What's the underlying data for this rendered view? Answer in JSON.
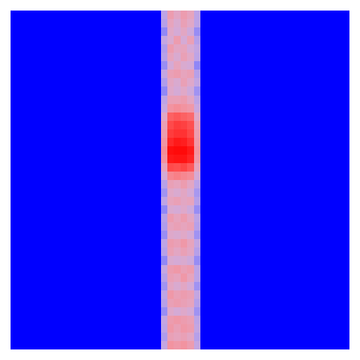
{
  "chart_data": {
    "type": "heatmap",
    "tick_labels": false,
    "xlim": [
      0,
      1
    ],
    "ylim": [
      0,
      1
    ],
    "x": [
      0,
      0.443,
      0.4625,
      0.482,
      0.5015,
      0.521,
      0.5405,
      0.56,
      1
    ],
    "y": [
      1,
      0.975,
      0.95,
      0.925,
      0.9,
      0.875,
      0.85,
      0.825,
      0.8,
      0.775,
      0.75,
      0.725,
      0.7,
      0.675,
      0.65,
      0.625,
      0.6,
      0.575,
      0.55,
      0.525,
      0.5,
      0.475,
      0.45,
      0.425,
      0.4,
      0.375,
      0.35,
      0.325,
      0.3,
      0.275,
      0.25,
      0.225,
      0.2,
      0.175,
      0.15,
      0.125,
      0.1,
      0.075,
      0.05,
      0.025,
      0
    ],
    "z": [
      [
        0,
        0.42,
        0.62,
        0.56,
        0.62,
        0.58,
        0.42,
        0
      ],
      [
        0,
        0.4,
        0.58,
        0.52,
        0.6,
        0.55,
        0.42,
        0
      ],
      [
        0,
        0.3,
        0.55,
        0.5,
        0.56,
        0.48,
        0.32,
        0
      ],
      [
        0,
        0.44,
        0.52,
        0.62,
        0.5,
        0.6,
        0.4,
        0
      ],
      [
        0,
        0.38,
        0.62,
        0.56,
        0.58,
        0.5,
        0.44,
        0
      ],
      [
        0,
        0.4,
        0.58,
        0.52,
        0.6,
        0.55,
        0.42,
        0
      ],
      [
        0,
        0.32,
        0.5,
        0.58,
        0.52,
        0.5,
        0.3,
        0
      ],
      [
        0,
        0.44,
        0.6,
        0.62,
        0.58,
        0.6,
        0.4,
        0
      ],
      [
        0,
        0.38,
        0.56,
        0.52,
        0.6,
        0.54,
        0.44,
        0
      ],
      [
        0,
        0.3,
        0.54,
        0.5,
        0.55,
        0.48,
        0.34,
        0
      ],
      [
        0,
        0.42,
        0.6,
        0.6,
        0.62,
        0.56,
        0.42,
        0
      ],
      [
        0,
        0.45,
        0.66,
        0.68,
        0.66,
        0.64,
        0.46,
        0
      ],
      [
        0,
        0.55,
        0.8,
        0.82,
        0.8,
        0.78,
        0.55,
        0
      ],
      [
        0,
        0.6,
        0.85,
        0.88,
        0.87,
        0.84,
        0.6,
        0
      ],
      [
        0,
        0.62,
        0.88,
        0.9,
        0.9,
        0.86,
        0.62,
        0
      ],
      [
        0,
        0.65,
        0.92,
        0.95,
        0.94,
        0.9,
        0.64,
        0
      ],
      [
        0,
        0.68,
        0.97,
        0.98,
        0.98,
        0.95,
        0.66,
        0
      ],
      [
        0,
        0.66,
        0.95,
        0.96,
        0.96,
        0.93,
        0.64,
        0
      ],
      [
        0,
        0.58,
        0.85,
        0.84,
        0.86,
        0.82,
        0.58,
        0
      ],
      [
        0,
        0.5,
        0.7,
        0.72,
        0.7,
        0.68,
        0.5,
        0
      ],
      [
        0,
        0.4,
        0.6,
        0.58,
        0.62,
        0.56,
        0.42,
        0
      ],
      [
        0,
        0.34,
        0.55,
        0.52,
        0.56,
        0.5,
        0.36,
        0
      ],
      [
        0,
        0.42,
        0.58,
        0.6,
        0.56,
        0.58,
        0.4,
        0
      ],
      [
        0,
        0.3,
        0.52,
        0.5,
        0.54,
        0.48,
        0.32,
        0
      ],
      [
        0,
        0.4,
        0.62,
        0.58,
        0.62,
        0.56,
        0.42,
        0
      ],
      [
        0,
        0.38,
        0.58,
        0.6,
        0.58,
        0.6,
        0.4,
        0
      ],
      [
        0,
        0.32,
        0.54,
        0.52,
        0.55,
        0.5,
        0.34,
        0
      ],
      [
        0,
        0.42,
        0.62,
        0.6,
        0.64,
        0.58,
        0.44,
        0
      ],
      [
        0,
        0.4,
        0.6,
        0.56,
        0.6,
        0.56,
        0.4,
        0
      ],
      [
        0,
        0.3,
        0.52,
        0.5,
        0.52,
        0.48,
        0.32,
        0
      ],
      [
        0,
        0.44,
        0.62,
        0.64,
        0.6,
        0.62,
        0.42,
        0
      ],
      [
        0,
        0.4,
        0.6,
        0.58,
        0.64,
        0.58,
        0.42,
        0
      ],
      [
        0,
        0.34,
        0.56,
        0.52,
        0.56,
        0.5,
        0.34,
        0
      ],
      [
        0,
        0.42,
        0.64,
        0.6,
        0.62,
        0.6,
        0.44,
        0
      ],
      [
        0,
        0.4,
        0.6,
        0.62,
        0.6,
        0.58,
        0.4,
        0
      ],
      [
        0,
        0.32,
        0.54,
        0.5,
        0.54,
        0.5,
        0.34,
        0
      ],
      [
        0,
        0.44,
        0.62,
        0.64,
        0.62,
        0.6,
        0.42,
        0
      ],
      [
        0,
        0.42,
        0.64,
        0.6,
        0.64,
        0.62,
        0.44,
        0
      ],
      [
        0,
        0.38,
        0.6,
        0.58,
        0.6,
        0.56,
        0.4,
        0
      ],
      [
        0,
        0.44,
        0.66,
        0.64,
        0.66,
        0.62,
        0.44,
        0
      ]
    ],
    "colorbar": {
      "range": [
        0,
        1
      ],
      "colors": [
        "#0000ff",
        "#ffffff",
        "#ff0000"
      ]
    }
  }
}
